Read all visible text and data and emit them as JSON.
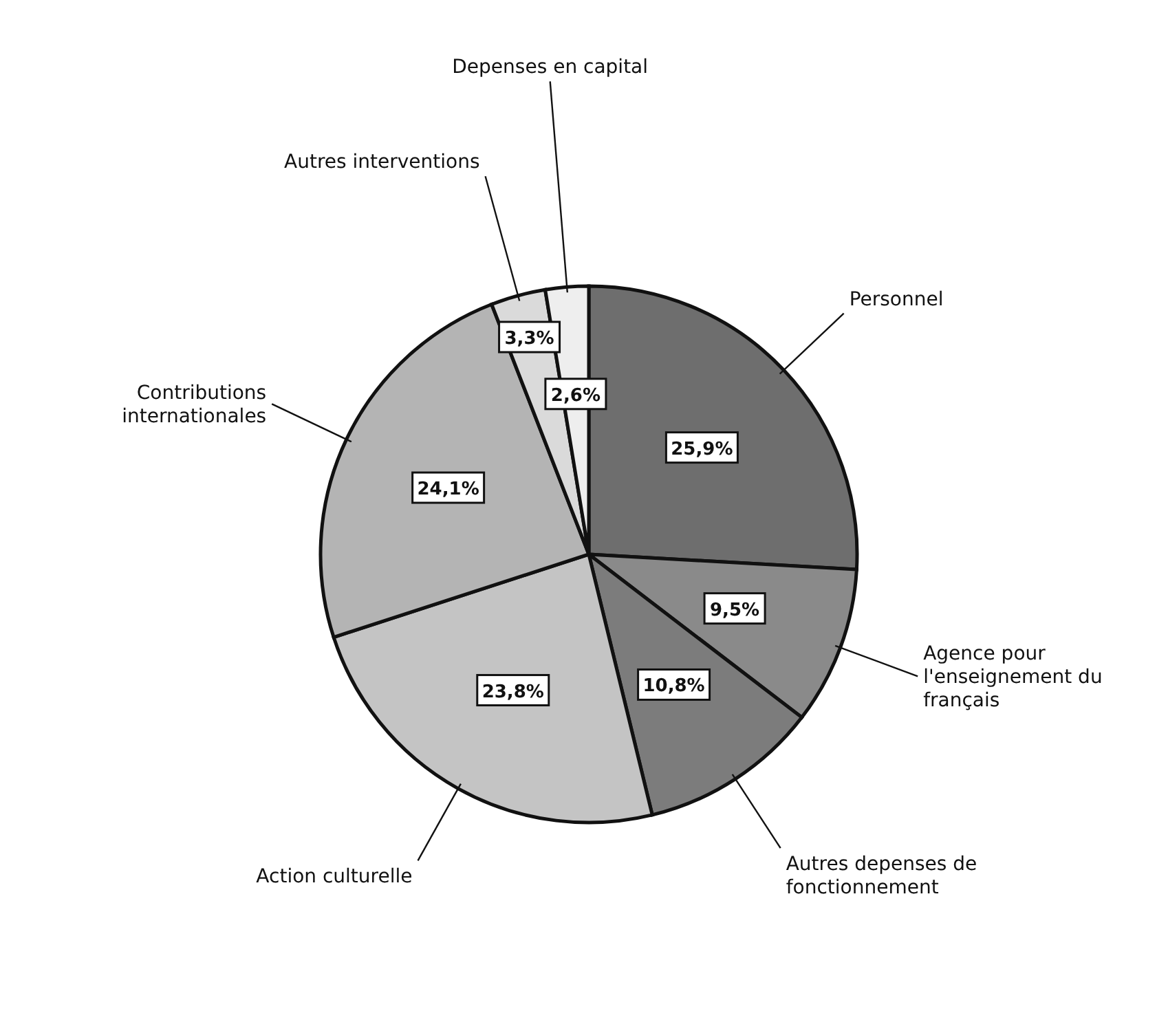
{
  "chart_data": {
    "type": "pie",
    "categories": [
      "Personnel",
      "Agence pour l'enseignement du français",
      "Autres depenses de fonctionnement",
      "Action culturelle",
      "Contributions internationales",
      "Autres interventions",
      "Depenses en capital"
    ],
    "values": [
      25.9,
      9.5,
      10.8,
      23.8,
      24.1,
      3.3,
      2.6
    ],
    "colors": [
      "#6e6e6e",
      "#8a8a8a",
      "#7c7c7c",
      "#c4c4c4",
      "#b4b4b4",
      "#dadada",
      "#eeeeee"
    ],
    "value_labels": [
      "25,9%",
      "9,5%",
      "10,8%",
      "23,8%",
      "24,1%",
      "3,3%",
      "2,6%"
    ]
  }
}
